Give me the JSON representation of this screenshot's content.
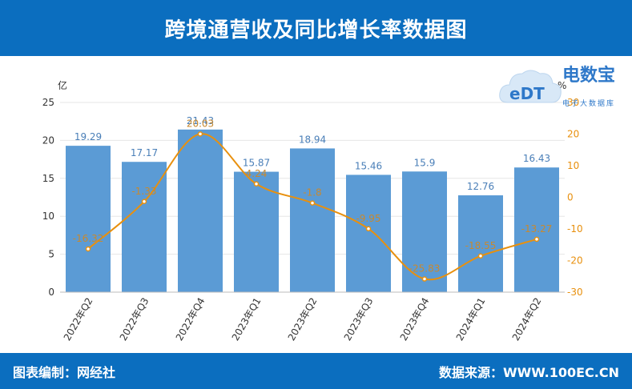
{
  "header": {
    "title": "跨境通营收及同比增长率数据图"
  },
  "footer": {
    "left": "图表编制：网经社",
    "right": "数据来源：WWW.100EC.CN"
  },
  "logo": {
    "brand": "电数宝",
    "sub": "电子大数据库",
    "badge": "eDT"
  },
  "colors": {
    "bar": "#5b9bd5",
    "line": "#e8900e",
    "header": "#0b6ebf",
    "barLabel": "#4a7fb8",
    "lineLabel": "#c8892f"
  },
  "chart_data": {
    "type": "bar",
    "categories": [
      "2022年Q2",
      "2022年Q3",
      "2022年Q4",
      "2023年Q1",
      "2023年Q2",
      "2023年Q3",
      "2023年Q4",
      "2024年Q1",
      "2024年Q2"
    ],
    "series": [
      {
        "name": "营收",
        "axis": "left",
        "type": "bar",
        "values": [
          19.29,
          17.17,
          21.43,
          15.87,
          18.94,
          15.46,
          15.9,
          12.76,
          16.43
        ]
      },
      {
        "name": "同比增长率",
        "axis": "right",
        "type": "line",
        "values": [
          -16.32,
          -1.33,
          20.03,
          4.24,
          -1.8,
          -9.95,
          -25.83,
          -18.55,
          -13.27
        ]
      }
    ],
    "y_left": {
      "label": "亿",
      "ylim": [
        0,
        25
      ],
      "ticks": [
        "0",
        "5",
        "10",
        "15",
        "20",
        "25"
      ]
    },
    "y_right": {
      "label": "%",
      "ylim": [
        -30,
        30
      ],
      "ticks": [
        "-30",
        "-20",
        "-10",
        "0",
        "10",
        "20",
        "30"
      ]
    },
    "bar_labels": [
      "19.29",
      "17.17",
      "21.43",
      "15.87",
      "18.94",
      "15.46",
      "15.9",
      "12.76",
      "16.43"
    ],
    "line_labels": [
      "-16.32",
      "-1.33",
      "20.03",
      "4.24",
      "-1.8",
      "-9.95",
      "-25.83",
      "-18.55",
      "-13.27"
    ]
  }
}
